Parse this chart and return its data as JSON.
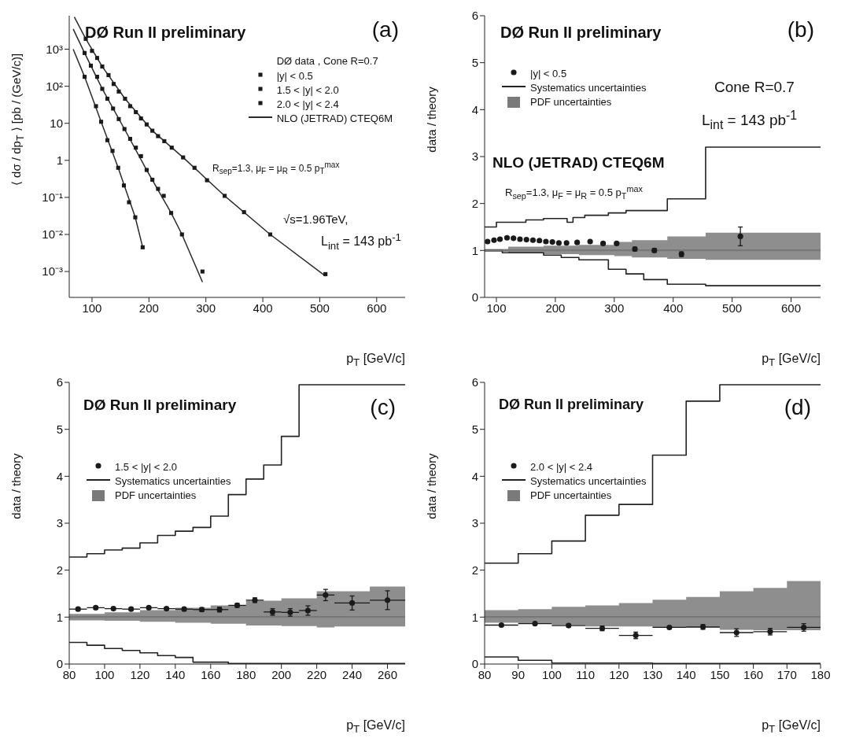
{
  "chart_data": [
    {
      "type": "scatter",
      "xlabel": "p$_{T}$ [GeV/c]",
      "ylabel": "⟨ dσ / dp$_{T}$ ⟩  [pb / (GeV/c)]",
      "legend_title": "DØ data ,  Cone R=0.7",
      "legend": "top right",
      "log": "y",
      "xlim": [
        60,
        650
      ],
      "ylim": [
        0.0002,
        8000
      ],
      "xticks": [
        100,
        200,
        300,
        400,
        500,
        600
      ],
      "yticks": [
        {
          "value": 0.001,
          "label": "10⁻³"
        },
        {
          "value": 0.01,
          "label": "10⁻²"
        },
        {
          "value": 0.1,
          "label": "10⁻¹"
        },
        1,
        10,
        {
          "value": 100,
          "label": "10²"
        },
        {
          "value": 1000,
          "label": "10³"
        }
      ],
      "annotations": [
        "DØ Run II preliminary",
        "(a)",
        "√s=1.96TeV,",
        "L$_{int}$ = 143 pb$^{-1}$",
        "R$_{sep}$=1.3,  μ$_{F}$ = μ$_{R}$ = 0.5 p$_{T}$$^{max}$"
      ],
      "series": [
        {
          "name": "|y| < 0.5",
          "marker": "square",
          "color": "#1a1a1a",
          "x": [
            89,
            100,
            109,
            118,
            129,
            138,
            147,
            158,
            167,
            177,
            186,
            196,
            206,
            216,
            227,
            240,
            260,
            280,
            302,
            333,
            367,
            413,
            510
          ],
          "values": [
            1900,
            900,
            580,
            340,
            200,
            115,
            72,
            46,
            29,
            20,
            13.5,
            9.3,
            6.3,
            4.5,
            3.3,
            2.2,
            1.2,
            0.63,
            0.29,
            0.11,
            0.04,
            0.01,
            0.00085
          ]
        },
        {
          "name": "1.5 < |y| < 2.0",
          "marker": "square",
          "color": "#1a1a1a",
          "x": [
            87,
            98,
            109,
            118,
            127,
            137,
            147,
            157,
            167,
            177,
            186,
            196,
            206,
            216,
            226,
            239,
            258,
            294
          ],
          "values": [
            790,
            360,
            180,
            85,
            46,
            25,
            13,
            7,
            3.8,
            2.2,
            1.3,
            0.55,
            0.3,
            0.17,
            0.11,
            0.038,
            0.01,
            0.001
          ]
        },
        {
          "name": "2.0 < |y| < 2.4",
          "marker": "square",
          "color": "#1a1a1a",
          "x": [
            87,
            107,
            116,
            127,
            136,
            146,
            156,
            165,
            176,
            189
          ],
          "values": [
            180,
            29,
            11,
            3.5,
            1.8,
            0.63,
            0.21,
            0.074,
            0.029,
            0.0045
          ]
        },
        {
          "type": "line",
          "name": "NLO (JETRAD) CTEQ6M",
          "color": "#2a2a2a",
          "x": [
            69,
            89,
            118,
            158,
            206,
            260,
            333,
            413,
            510
          ],
          "values": [
            7400,
            1900,
            340,
            46,
            6.3,
            1.2,
            0.11,
            0.01,
            0.00075
          ]
        },
        {
          "type": "line",
          "color": "#2a2a2a",
          "x": [
            67,
            87,
            118,
            157,
            196,
            239,
            258,
            294
          ],
          "values": [
            3500,
            790,
            85,
            7,
            0.55,
            0.038,
            0.01,
            0.00052
          ]
        },
        {
          "type": "line",
          "color": "#2a2a2a",
          "x": [
            67,
            87,
            116,
            146,
            176,
            189
          ],
          "values": [
            1000,
            180,
            11,
            0.63,
            0.029,
            0.0045
          ]
        }
      ]
    },
    {
      "type": "step",
      "xlabel": "p$_{T}$ [GeV/c]",
      "ylabel": "data / theory",
      "legend": "top left",
      "xlim": [
        80,
        650
      ],
      "ylim": [
        0,
        6
      ],
      "xticks": [
        100,
        200,
        300,
        400,
        500,
        600
      ],
      "yticks": [
        0,
        1,
        2,
        3,
        4,
        5,
        6
      ],
      "annotations": [
        "DØ Run II preliminary",
        "(b)",
        "Cone R=0.7",
        "L$_{int}$ = 143 pb$^{-1}$",
        "NLO (JETRAD) CTEQ6M",
        "R$_{sep}$=1.3,   μ$_{F}$ = μ$_{R}$ = 0.5 p$_{T}$$^{max}$"
      ],
      "ref_lines": [
        {
          "axis": "y",
          "value": 1,
          "color": "#222222"
        }
      ],
      "series": [
        {
          "type": "scatter",
          "marker": "circle",
          "name": "|y| < 0.5",
          "color": "#1a1a1a",
          "x": [
            85,
            96,
            106,
            118,
            129,
            140,
            151,
            162,
            173,
            184,
            195,
            206,
            219,
            237,
            259,
            281,
            304,
            335,
            368,
            414,
            514
          ],
          "values": [
            1.19,
            1.22,
            1.24,
            1.27,
            1.26,
            1.24,
            1.23,
            1.22,
            1.21,
            1.19,
            1.18,
            1.16,
            1.16,
            1.17,
            1.19,
            1.15,
            1.15,
            1.03,
            1.0,
            0.92,
            1.3
          ],
          "errors": [
            0.02,
            0.02,
            0.02,
            0.02,
            0.02,
            0.02,
            0.02,
            0.02,
            0.02,
            0.02,
            0.02,
            0.02,
            0.02,
            0.02,
            0.02,
            0.02,
            0.02,
            0.04,
            0.04,
            0.05,
            0.2
          ]
        },
        {
          "name": "Systematics uncertainties",
          "color": "#222222",
          "x": [
            80,
            100,
            150,
            180,
            220,
            230,
            250,
            290,
            320,
            390,
            455,
            650
          ],
          "values": [
            1.5,
            1.6,
            1.65,
            1.68,
            1.6,
            1.7,
            1.75,
            1.8,
            1.85,
            2.1,
            3.2,
            3.2
          ]
        },
        {
          "color": "#222222",
          "x": [
            80,
            110,
            180,
            210,
            240,
            290,
            320,
            350,
            390,
            455,
            650
          ],
          "values": [
            1.0,
            0.95,
            0.9,
            0.85,
            0.8,
            0.6,
            0.5,
            0.38,
            0.28,
            0.25,
            0.25
          ]
        },
        {
          "name": "PDF uncertainties",
          "color": "#7a7a7a",
          "x": [
            80,
            120,
            180,
            240,
            300,
            330,
            390,
            455,
            650
          ],
          "values": [
            1,
            1,
            1,
            1,
            1,
            1,
            1,
            1,
            1
          ],
          "upper": [
            1.03,
            1.08,
            1.1,
            1.12,
            1.18,
            1.22,
            1.3,
            1.38,
            1.38
          ],
          "lower": [
            0.97,
            0.94,
            0.92,
            0.9,
            0.88,
            0.85,
            0.82,
            0.8,
            0.8
          ]
        }
      ]
    },
    {
      "type": "step",
      "xlabel": "p$_{T}$ [GeV/c]",
      "ylabel": "data / theory",
      "legend": "top left",
      "xlim": [
        80,
        270
      ],
      "ylim": [
        0,
        6
      ],
      "xticks": [
        80,
        100,
        120,
        140,
        160,
        180,
        200,
        220,
        240,
        260
      ],
      "yticks": [
        0,
        1,
        2,
        3,
        4,
        5,
        6
      ],
      "annotations": [
        "DØ Run II preliminary",
        "(c)"
      ],
      "ref_lines": [
        {
          "axis": "y",
          "value": 1,
          "color": "#222222"
        }
      ],
      "series": [
        {
          "type": "scatter",
          "marker": "circle",
          "name": "1.5 < |y| < 2.0",
          "color": "#1a1a1a",
          "x": [
            85,
            95,
            105,
            115,
            125,
            135,
            145,
            155,
            165,
            175,
            185,
            195,
            205,
            215,
            225,
            240,
            260
          ],
          "values": [
            1.17,
            1.2,
            1.18,
            1.17,
            1.2,
            1.18,
            1.17,
            1.16,
            1.16,
            1.25,
            1.36,
            1.11,
            1.1,
            1.14,
            1.47,
            1.3,
            1.36
          ],
          "errors": [
            0.03,
            0.03,
            0.03,
            0.03,
            0.03,
            0.03,
            0.03,
            0.04,
            0.05,
            0.04,
            0.05,
            0.07,
            0.08,
            0.1,
            0.12,
            0.15,
            0.2
          ],
          "xerrors": [
            5,
            5,
            5,
            5,
            5,
            5,
            5,
            5,
            5,
            5,
            5,
            5,
            5,
            5,
            5,
            10,
            10
          ]
        },
        {
          "name": "Systematics uncertainties",
          "color": "#222222",
          "x": [
            80,
            90,
            100,
            110,
            120,
            130,
            140,
            150,
            160,
            170,
            180,
            190,
            200,
            210,
            270
          ],
          "values": [
            2.28,
            2.35,
            2.43,
            2.47,
            2.58,
            2.74,
            2.83,
            2.91,
            3.15,
            3.61,
            3.94,
            4.24,
            4.85,
            5.95,
            5.95
          ]
        },
        {
          "color": "#222222",
          "x": [
            80,
            90,
            100,
            110,
            120,
            130,
            140,
            150,
            170,
            270
          ],
          "values": [
            0.46,
            0.4,
            0.33,
            0.29,
            0.24,
            0.18,
            0.14,
            0.04,
            0.01,
            0.01
          ]
        },
        {
          "name": "PDF uncertainties",
          "color": "#7a7a7a",
          "x": [
            80,
            100,
            120,
            140,
            160,
            180,
            200,
            220,
            230,
            250,
            270
          ],
          "values": [
            1,
            1,
            1,
            1,
            1,
            1,
            1,
            1,
            1,
            1,
            1
          ],
          "upper": [
            1.07,
            1.1,
            1.15,
            1.2,
            1.25,
            1.35,
            1.4,
            1.55,
            1.55,
            1.65,
            1.65
          ],
          "lower": [
            0.93,
            0.92,
            0.9,
            0.88,
            0.86,
            0.82,
            0.81,
            0.78,
            0.8,
            0.8,
            0.8
          ]
        }
      ]
    },
    {
      "type": "step",
      "xlabel": "p$_{T}$ [GeV/c]",
      "ylabel": "data / theory",
      "legend": "top left",
      "xlim": [
        80,
        180
      ],
      "ylim": [
        0,
        6
      ],
      "xticks": [
        80,
        90,
        100,
        110,
        120,
        130,
        140,
        150,
        160,
        170,
        180
      ],
      "yticks": [
        0,
        1,
        2,
        3,
        4,
        5,
        6
      ],
      "annotations": [
        "DØ Run II preliminary",
        "(d)"
      ],
      "ref_lines": [
        {
          "axis": "y",
          "value": 1,
          "color": "#222222"
        }
      ],
      "series": [
        {
          "type": "scatter",
          "marker": "circle",
          "name": "2.0 < |y| < 2.4",
          "color": "#1a1a1a",
          "x": [
            85,
            95,
            105,
            115,
            125,
            135,
            145,
            155,
            165,
            175
          ],
          "values": [
            0.83,
            0.86,
            0.82,
            0.76,
            0.61,
            0.78,
            0.79,
            0.67,
            0.69,
            0.78
          ],
          "errors": [
            0.02,
            0.02,
            0.03,
            0.05,
            0.07,
            0.03,
            0.05,
            0.08,
            0.07,
            0.08
          ],
          "xerrors": [
            5,
            5,
            5,
            5,
            5,
            5,
            5,
            5,
            5,
            5
          ]
        },
        {
          "name": "Systematics uncertainties",
          "color": "#222222",
          "x": [
            80,
            90,
            100,
            110,
            120,
            130,
            140,
            150,
            180
          ],
          "values": [
            2.15,
            2.35,
            2.62,
            3.17,
            3.4,
            4.45,
            5.6,
            5.95,
            5.95
          ]
        },
        {
          "color": "#222222",
          "x": [
            80,
            90,
            100,
            130,
            180
          ],
          "values": [
            0.15,
            0.08,
            0.02,
            0.01,
            0.01
          ]
        },
        {
          "name": "PDF uncertainties",
          "color": "#7a7a7a",
          "x": [
            80,
            90,
            100,
            110,
            120,
            130,
            140,
            150,
            160,
            170,
            180
          ],
          "values": [
            1,
            1,
            1,
            1,
            1,
            1,
            1,
            1,
            1,
            1,
            1
          ],
          "upper": [
            1.15,
            1.17,
            1.22,
            1.25,
            1.3,
            1.37,
            1.43,
            1.55,
            1.62,
            1.77,
            1.77
          ],
          "lower": [
            0.88,
            0.87,
            0.83,
            0.8,
            0.8,
            0.78,
            0.77,
            0.73,
            0.72,
            0.72,
            0.72
          ]
        }
      ]
    }
  ]
}
